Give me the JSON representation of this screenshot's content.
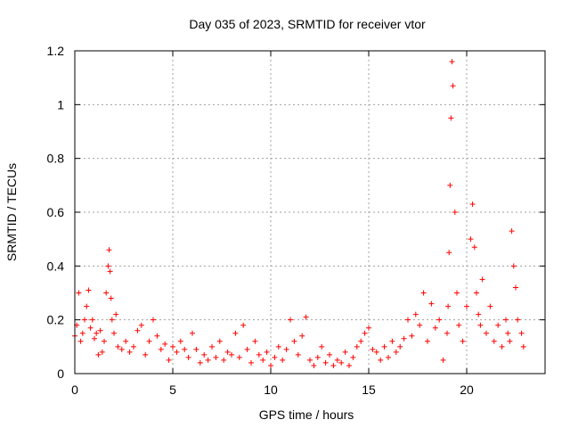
{
  "chart_data": {
    "type": "scatter",
    "title": "Day 035 of 2023, SRMTID for receiver vtor",
    "xlabel": "GPS time / hours",
    "ylabel": "SRMTID / TECUs",
    "xlim": [
      0,
      24
    ],
    "ylim": [
      0,
      1.2
    ],
    "x_ticks": [
      0,
      5,
      10,
      15,
      20
    ],
    "x_tick_labels": [
      "0",
      "5",
      "10",
      "15",
      "20"
    ],
    "y_ticks": [
      0,
      0.2,
      0.4,
      0.6,
      0.8,
      1.0,
      1.2
    ],
    "y_tick_labels": [
      "0",
      "0.2",
      "0.4",
      "0.6",
      "0.8",
      "1",
      "1.2"
    ],
    "grid": true,
    "marker": "plus",
    "marker_color": "#ff0000",
    "series": [
      {
        "name": "SRMTID",
        "x": [
          0.0,
          0.1,
          0.2,
          0.3,
          0.4,
          0.5,
          0.6,
          0.7,
          0.8,
          0.9,
          1.0,
          1.1,
          1.2,
          1.3,
          1.4,
          1.5,
          1.6,
          1.7,
          1.75,
          1.8,
          1.85,
          1.9,
          2.0,
          2.1,
          2.2,
          2.4,
          2.6,
          2.8,
          3.0,
          3.2,
          3.4,
          3.6,
          3.8,
          4.0,
          4.2,
          4.4,
          4.6,
          4.8,
          5.0,
          5.2,
          5.4,
          5.6,
          5.8,
          6.0,
          6.2,
          6.4,
          6.6,
          6.8,
          7.0,
          7.2,
          7.4,
          7.6,
          7.8,
          8.0,
          8.2,
          8.4,
          8.6,
          8.8,
          9.0,
          9.2,
          9.4,
          9.6,
          9.8,
          10.0,
          10.2,
          10.4,
          10.6,
          10.8,
          11.0,
          11.2,
          11.4,
          11.6,
          11.8,
          12.0,
          12.2,
          12.4,
          12.6,
          12.8,
          13.0,
          13.2,
          13.4,
          13.6,
          13.8,
          14.0,
          14.2,
          14.4,
          14.6,
          14.8,
          15.0,
          15.2,
          15.4,
          15.6,
          15.8,
          16.0,
          16.2,
          16.4,
          16.6,
          16.8,
          17.0,
          17.2,
          17.4,
          17.6,
          17.8,
          18.0,
          18.2,
          18.4,
          18.6,
          18.8,
          19.0,
          19.05,
          19.1,
          19.15,
          19.2,
          19.25,
          19.3,
          19.4,
          19.5,
          19.6,
          19.8,
          20.0,
          20.2,
          20.3,
          20.4,
          20.5,
          20.6,
          20.7,
          20.8,
          21.0,
          21.2,
          21.4,
          21.6,
          21.8,
          22.0,
          22.1,
          22.2,
          22.3,
          22.4,
          22.5,
          22.6,
          22.8,
          22.9
        ],
        "y": [
          0.14,
          0.18,
          0.3,
          0.12,
          0.15,
          0.2,
          0.25,
          0.31,
          0.17,
          0.2,
          0.13,
          0.15,
          0.07,
          0.16,
          0.08,
          0.12,
          0.3,
          0.4,
          0.46,
          0.38,
          0.28,
          0.2,
          0.15,
          0.22,
          0.1,
          0.09,
          0.12,
          0.08,
          0.1,
          0.16,
          0.18,
          0.07,
          0.12,
          0.2,
          0.14,
          0.09,
          0.11,
          0.05,
          0.1,
          0.08,
          0.12,
          0.09,
          0.06,
          0.15,
          0.09,
          0.04,
          0.07,
          0.05,
          0.1,
          0.06,
          0.12,
          0.05,
          0.08,
          0.07,
          0.15,
          0.06,
          0.18,
          0.09,
          0.04,
          0.12,
          0.07,
          0.05,
          0.08,
          0.03,
          0.06,
          0.1,
          0.05,
          0.09,
          0.2,
          0.12,
          0.07,
          0.14,
          0.21,
          0.05,
          0.03,
          0.06,
          0.1,
          0.04,
          0.07,
          0.03,
          0.05,
          0.04,
          0.08,
          0.03,
          0.06,
          0.1,
          0.12,
          0.15,
          0.17,
          0.09,
          0.08,
          0.05,
          0.1,
          0.06,
          0.12,
          0.08,
          0.1,
          0.13,
          0.2,
          0.14,
          0.22,
          0.18,
          0.3,
          0.12,
          0.26,
          0.17,
          0.2,
          0.05,
          0.15,
          0.25,
          0.45,
          0.7,
          0.95,
          1.16,
          1.07,
          0.6,
          0.3,
          0.18,
          0.12,
          0.25,
          0.5,
          0.63,
          0.47,
          0.3,
          0.22,
          0.18,
          0.35,
          0.15,
          0.25,
          0.12,
          0.18,
          0.1,
          0.2,
          0.15,
          0.12,
          0.53,
          0.4,
          0.32,
          0.2,
          0.15,
          0.1
        ]
      }
    ]
  }
}
